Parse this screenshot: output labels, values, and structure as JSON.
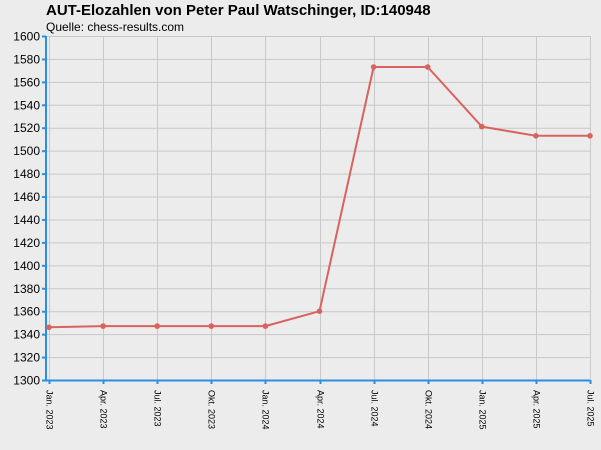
{
  "header": {
    "title": "AUT-Elozahlen von Peter Paul Watschinger, ID:140948",
    "source": "Quelle: chess-results.com"
  },
  "colors": {
    "background": "#ececec",
    "grid": "#c8c8c8",
    "axis": "#2a8ee6",
    "series": "#d9625e"
  },
  "chart_data": {
    "type": "line",
    "title": "AUT-Elozahlen von Peter Paul Watschinger, ID:140948",
    "subtitle": "Quelle: chess-results.com",
    "x": [
      "Jan. 2023",
      "Apr. 2023",
      "Jul. 2023",
      "Okt. 2023",
      "Jan. 2024",
      "Apr. 2024",
      "Jul. 2024",
      "Okt. 2024",
      "Jan. 2025",
      "Apr. 2025",
      "Jul. 2025"
    ],
    "series": [
      {
        "values": [
          1346,
          1347,
          1347,
          1347,
          1347,
          1360,
          1573,
          1573,
          1521,
          1513,
          1513
        ]
      }
    ],
    "ylim": [
      1300,
      1600
    ],
    "yticks": [
      1300,
      1320,
      1340,
      1360,
      1380,
      1400,
      1420,
      1440,
      1460,
      1480,
      1500,
      1520,
      1540,
      1560,
      1580,
      1600
    ],
    "grid": true,
    "legend": "none"
  }
}
